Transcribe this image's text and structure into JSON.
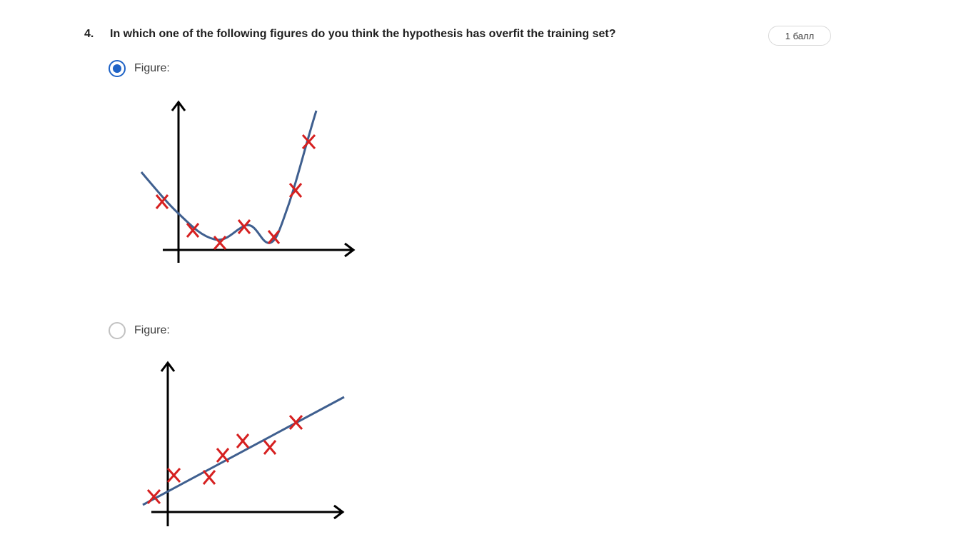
{
  "question": {
    "number": "4.",
    "text": "In which one of the following figures do you think the hypothesis has overfit the training set?",
    "points": "1 балл"
  },
  "options": [
    {
      "label": "Figure:",
      "selected": true,
      "figure": "overfit-polynomial-curve-with-training-points"
    },
    {
      "label": "Figure:",
      "selected": false,
      "figure": "linear-fit-with-training-points"
    }
  ],
  "colors": {
    "accent": "#1f63c6",
    "curve": "#3f5f8f",
    "marker": "#d62020",
    "axis": "#000000"
  }
}
